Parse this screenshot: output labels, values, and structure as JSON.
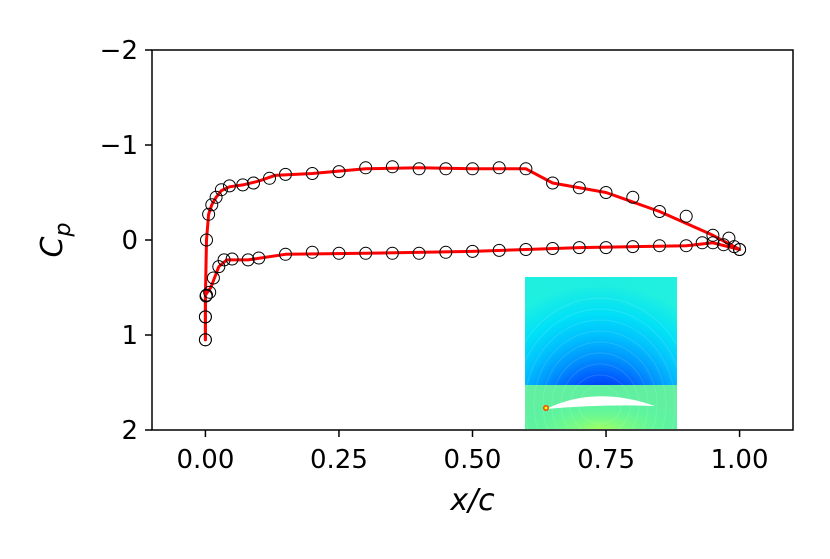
{
  "chart_data": {
    "type": "line",
    "xlabel": "x/c",
    "ylabel": "C_p",
    "xlim": [
      -0.1,
      1.1
    ],
    "ylim": [
      2,
      -2
    ],
    "y_axis_inverted": true,
    "grid": false,
    "x_ticks": [
      "0.00",
      "0.25",
      "0.50",
      "0.75",
      "1.00"
    ],
    "x_tick_values": [
      0,
      0.25,
      0.5,
      0.75,
      1.0
    ],
    "y_ticks": [
      "−2",
      "−1",
      "0",
      "1",
      "2"
    ],
    "y_tick_values": [
      -2,
      -1,
      0,
      1,
      2
    ],
    "series": [
      {
        "marker": "open-circle",
        "color": "#000000",
        "upper_surface": [
          [
            0.0,
            1.05
          ],
          [
            0.0,
            0.81
          ],
          [
            0.001,
            0.59
          ],
          [
            0.002,
            0.0
          ],
          [
            0.006,
            -0.27
          ],
          [
            0.012,
            -0.37
          ],
          [
            0.02,
            -0.45
          ],
          [
            0.03,
            -0.53
          ],
          [
            0.045,
            -0.57
          ],
          [
            0.07,
            -0.58
          ],
          [
            0.09,
            -0.6
          ],
          [
            0.12,
            -0.65
          ],
          [
            0.15,
            -0.69
          ],
          [
            0.2,
            -0.7
          ],
          [
            0.25,
            -0.72
          ],
          [
            0.3,
            -0.76
          ],
          [
            0.35,
            -0.77
          ],
          [
            0.4,
            -0.75
          ],
          [
            0.45,
            -0.75
          ],
          [
            0.5,
            -0.75
          ],
          [
            0.55,
            -0.76
          ],
          [
            0.6,
            -0.75
          ],
          [
            0.65,
            -0.6
          ],
          [
            0.7,
            -0.55
          ],
          [
            0.75,
            -0.5
          ],
          [
            0.8,
            -0.45
          ],
          [
            0.85,
            -0.3
          ],
          [
            0.9,
            -0.25
          ],
          [
            0.95,
            -0.05
          ],
          [
            0.98,
            -0.02
          ],
          [
            1.0,
            0.1
          ]
        ],
        "lower_surface": [
          [
            0.0,
            1.05
          ],
          [
            0.0,
            0.81
          ],
          [
            0.002,
            0.58
          ],
          [
            0.008,
            0.55
          ],
          [
            0.015,
            0.4
          ],
          [
            0.025,
            0.28
          ],
          [
            0.035,
            0.21
          ],
          [
            0.05,
            0.2
          ],
          [
            0.08,
            0.21
          ],
          [
            0.1,
            0.19
          ],
          [
            0.15,
            0.15
          ],
          [
            0.2,
            0.13
          ],
          [
            0.25,
            0.14
          ],
          [
            0.3,
            0.14
          ],
          [
            0.35,
            0.14
          ],
          [
            0.4,
            0.14
          ],
          [
            0.45,
            0.13
          ],
          [
            0.5,
            0.12
          ],
          [
            0.55,
            0.11
          ],
          [
            0.6,
            0.1
          ],
          [
            0.65,
            0.09
          ],
          [
            0.7,
            0.08
          ],
          [
            0.75,
            0.08
          ],
          [
            0.8,
            0.07
          ],
          [
            0.85,
            0.06
          ],
          [
            0.9,
            0.06
          ],
          [
            0.93,
            0.03
          ],
          [
            0.95,
            0.03
          ],
          [
            0.97,
            0.05
          ],
          [
            0.99,
            0.07
          ],
          [
            1.0,
            0.1
          ]
        ]
      },
      {
        "line": "solid",
        "color": "#ff0000",
        "upper_surface": [
          [
            0.0,
            1.05
          ],
          [
            0.0,
            0.6
          ],
          [
            0.002,
            0.0
          ],
          [
            0.006,
            -0.27
          ],
          [
            0.012,
            -0.37
          ],
          [
            0.02,
            -0.45
          ],
          [
            0.03,
            -0.52
          ],
          [
            0.045,
            -0.56
          ],
          [
            0.07,
            -0.58
          ],
          [
            0.1,
            -0.62
          ],
          [
            0.13,
            -0.68
          ],
          [
            0.2,
            -0.7
          ],
          [
            0.3,
            -0.75
          ],
          [
            0.4,
            -0.76
          ],
          [
            0.5,
            -0.75
          ],
          [
            0.6,
            -0.75
          ],
          [
            0.65,
            -0.6
          ],
          [
            0.75,
            -0.5
          ],
          [
            0.85,
            -0.3
          ],
          [
            0.95,
            -0.05
          ],
          [
            1.0,
            0.1
          ]
        ],
        "lower_surface": [
          [
            0.0,
            1.05
          ],
          [
            0.0,
            0.58
          ],
          [
            0.01,
            0.5
          ],
          [
            0.025,
            0.28
          ],
          [
            0.04,
            0.21
          ],
          [
            0.08,
            0.21
          ],
          [
            0.15,
            0.15
          ],
          [
            0.3,
            0.14
          ],
          [
            0.5,
            0.12
          ],
          [
            0.7,
            0.08
          ],
          [
            0.9,
            0.06
          ],
          [
            0.95,
            0.03
          ],
          [
            1.0,
            0.1
          ]
        ]
      }
    ],
    "inset": {
      "type": "heatmap",
      "colormap": [
        "#0000c8",
        "#0050ff",
        "#00a8ff",
        "#00e0ff",
        "#40ffc0",
        "#80ff80",
        "#ffff40",
        "#ff8000"
      ]
    }
  }
}
